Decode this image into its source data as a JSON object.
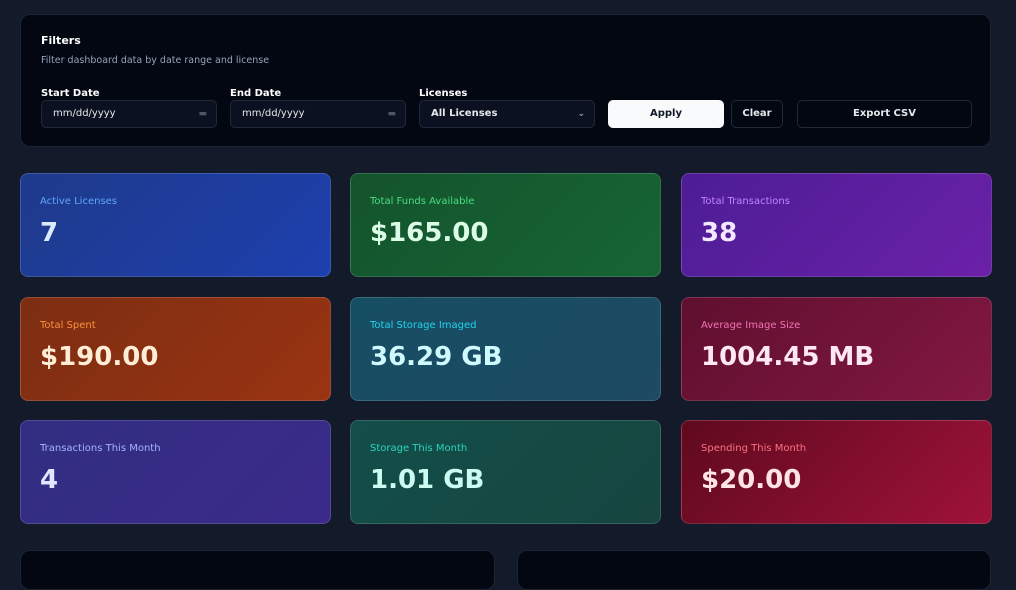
{
  "filters": {
    "title": "Filters",
    "subtitle": "Filter dashboard data by date range and license",
    "start_label": "Start Date",
    "start_value": "mm/dd/yyyy",
    "end_label": "End Date",
    "end_value": "mm/dd/yyyy",
    "license_label": "Licenses",
    "license_value": "All Licenses",
    "apply": "Apply",
    "clear": "Clear",
    "export": "Export CSV"
  },
  "cards": [
    {
      "title": "Active Licenses",
      "value": "7",
      "bg": "linear-gradient(135deg,#1e3a8a,#1e40af)",
      "tc": "#60a5fa",
      "vc": "#dbeafe"
    },
    {
      "title": "Total Funds Available",
      "value": "$165.00",
      "bg": "linear-gradient(135deg,#14532d,#166534)",
      "tc": "#4ade80",
      "vc": "#dcfce7"
    },
    {
      "title": "Total Transactions",
      "value": "38",
      "bg": "linear-gradient(135deg,#4c1d95,#6b21a8)",
      "tc": "#c084fc",
      "vc": "#f3e8ff"
    },
    {
      "title": "Total Spent",
      "value": "$190.00",
      "bg": "linear-gradient(135deg,#7c2d12,#9a3412)",
      "tc": "#fb923c",
      "vc": "#ffedd5"
    },
    {
      "title": "Total Storage Imaged",
      "value": "36.29 GB",
      "bg": "linear-gradient(135deg,#164e63,#1e4a63)",
      "tc": "#22d3ee",
      "vc": "#cffafe"
    },
    {
      "title": "Average Image Size",
      "value": "1004.45 MB",
      "bg": "linear-gradient(135deg,#5f0f2e,#831843)",
      "tc": "#f472b6",
      "vc": "#fce7f3"
    },
    {
      "title": "Transactions This Month",
      "value": "4",
      "bg": "linear-gradient(135deg,#312e81,#3b2a8a)",
      "tc": "#a5b4fc",
      "vc": "#e0e7ff"
    },
    {
      "title": "Storage This Month",
      "value": "1.01 GB",
      "bg": "linear-gradient(135deg,#134e4a,#17453f)",
      "tc": "#2dd4bf",
      "vc": "#ccfbf1"
    },
    {
      "title": "Spending This Month",
      "value": "$20.00",
      "bg": "linear-gradient(135deg,#5f0a1e,#9f1239)",
      "tc": "#fb7185",
      "vc": "#ffe4e6"
    }
  ]
}
